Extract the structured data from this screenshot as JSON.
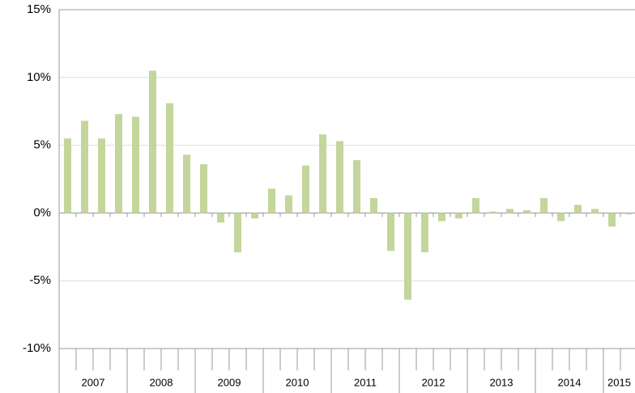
{
  "chart_data": {
    "type": "bar",
    "categories": [
      null,
      null,
      null,
      null,
      null,
      null,
      null,
      null,
      null,
      null,
      null,
      null,
      null,
      null,
      null,
      null,
      null,
      null,
      null,
      null,
      null,
      null,
      null,
      null,
      null,
      null,
      null,
      null,
      null,
      null,
      null,
      null,
      null,
      null
    ],
    "groups": [
      "2007",
      "2008",
      "2009",
      "2010",
      "2011",
      "2012",
      "2013",
      "2014",
      "2015"
    ],
    "values": [
      5.5,
      6.8,
      5.5,
      7.3,
      7.1,
      10.5,
      8.1,
      4.3,
      3.6,
      -0.7,
      -2.9,
      -0.4,
      1.8,
      1.3,
      3.5,
      5.8,
      5.3,
      3.9,
      1.1,
      -2.8,
      -6.4,
      -2.9,
      -0.6,
      -0.4,
      1.1,
      0.1,
      0.3,
      0.2,
      1.1,
      -0.6,
      0.6,
      0.3,
      -1.0,
      -0.1
    ],
    "color": "#c3d69b",
    "ylim": [
      -10,
      15
    ],
    "yticks": [
      {
        "value": -10,
        "label": "-10%"
      },
      {
        "value": -5,
        "label": "-5%"
      },
      {
        "value": 0,
        "label": "0%"
      },
      {
        "value": 5,
        "label": "5%"
      },
      {
        "value": 10,
        "label": "10%"
      },
      {
        "value": 15,
        "label": "15%"
      }
    ],
    "grid": true
  }
}
